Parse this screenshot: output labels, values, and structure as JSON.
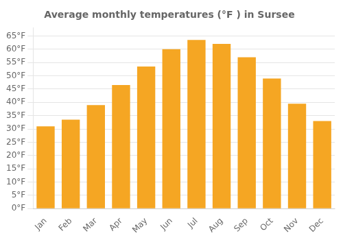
{
  "chart_data": {
    "type": "bar",
    "title": "Average monthly temperatures (°F ) in Sursee",
    "categories": [
      "Jan",
      "Feb",
      "Mar",
      "Apr",
      "May",
      "Jun",
      "Jul",
      "Aug",
      "Sep",
      "Oct",
      "Nov",
      "Dec"
    ],
    "values": [
      31,
      33.5,
      39,
      46.5,
      53.5,
      60,
      63.5,
      62,
      57,
      49,
      39.5,
      33
    ],
    "color": "#F5A623",
    "ylim": [
      0,
      68
    ],
    "yticks": [
      {
        "value": 0,
        "label": "0°F"
      },
      {
        "value": 5,
        "label": "5°F"
      },
      {
        "value": 10,
        "label": "10°F"
      },
      {
        "value": 15,
        "label": "15°F"
      },
      {
        "value": 20,
        "label": "20°F"
      },
      {
        "value": 25,
        "label": "25°F"
      },
      {
        "value": 30,
        "label": "30°F"
      },
      {
        "value": 35,
        "label": "35°F"
      },
      {
        "value": 40,
        "label": "40°F"
      },
      {
        "value": 45,
        "label": "45°F"
      },
      {
        "value": 50,
        "label": "50°F"
      },
      {
        "value": 55,
        "label": "55°F"
      },
      {
        "value": 60,
        "label": "60°F"
      },
      {
        "value": 65,
        "label": "65°F"
      }
    ],
    "grid": true
  }
}
